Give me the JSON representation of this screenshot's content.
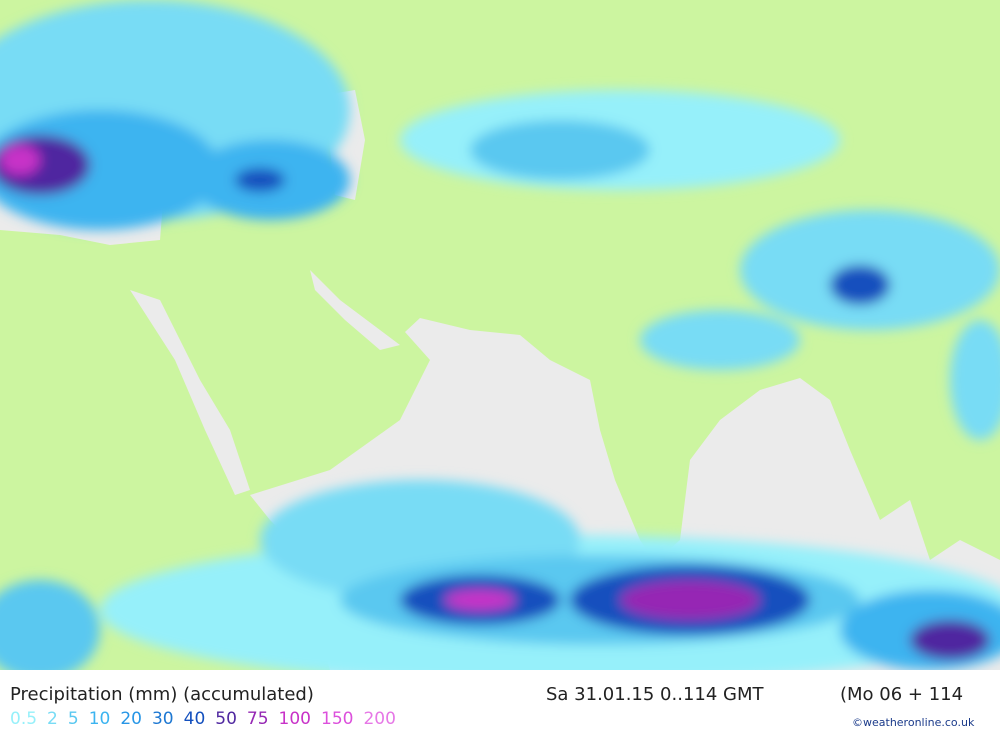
{
  "title": "Precipitation (mm) (accumulated)",
  "time": "Sa 31.01.15 0..114 GMT",
  "run": "(Mo 06 + 114",
  "credit": "©weatheronline.co.uk",
  "legend": {
    "items": [
      {
        "label": "0.5",
        "color": "#96f0fa"
      },
      {
        "label": "2",
        "color": "#78dcf5"
      },
      {
        "label": "5",
        "color": "#5ac8f0"
      },
      {
        "label": "10",
        "color": "#3cb4f0"
      },
      {
        "label": "20",
        "color": "#2896e6"
      },
      {
        "label": "30",
        "color": "#1e78d2"
      },
      {
        "label": "40",
        "color": "#1450be"
      },
      {
        "label": "50",
        "color": "#5028a0"
      },
      {
        "label": "75",
        "color": "#9628b4"
      },
      {
        "label": "100",
        "color": "#c832c8"
      },
      {
        "label": "150",
        "color": "#dc50dc"
      },
      {
        "label": "200",
        "color": "#e678e6"
      }
    ]
  }
}
